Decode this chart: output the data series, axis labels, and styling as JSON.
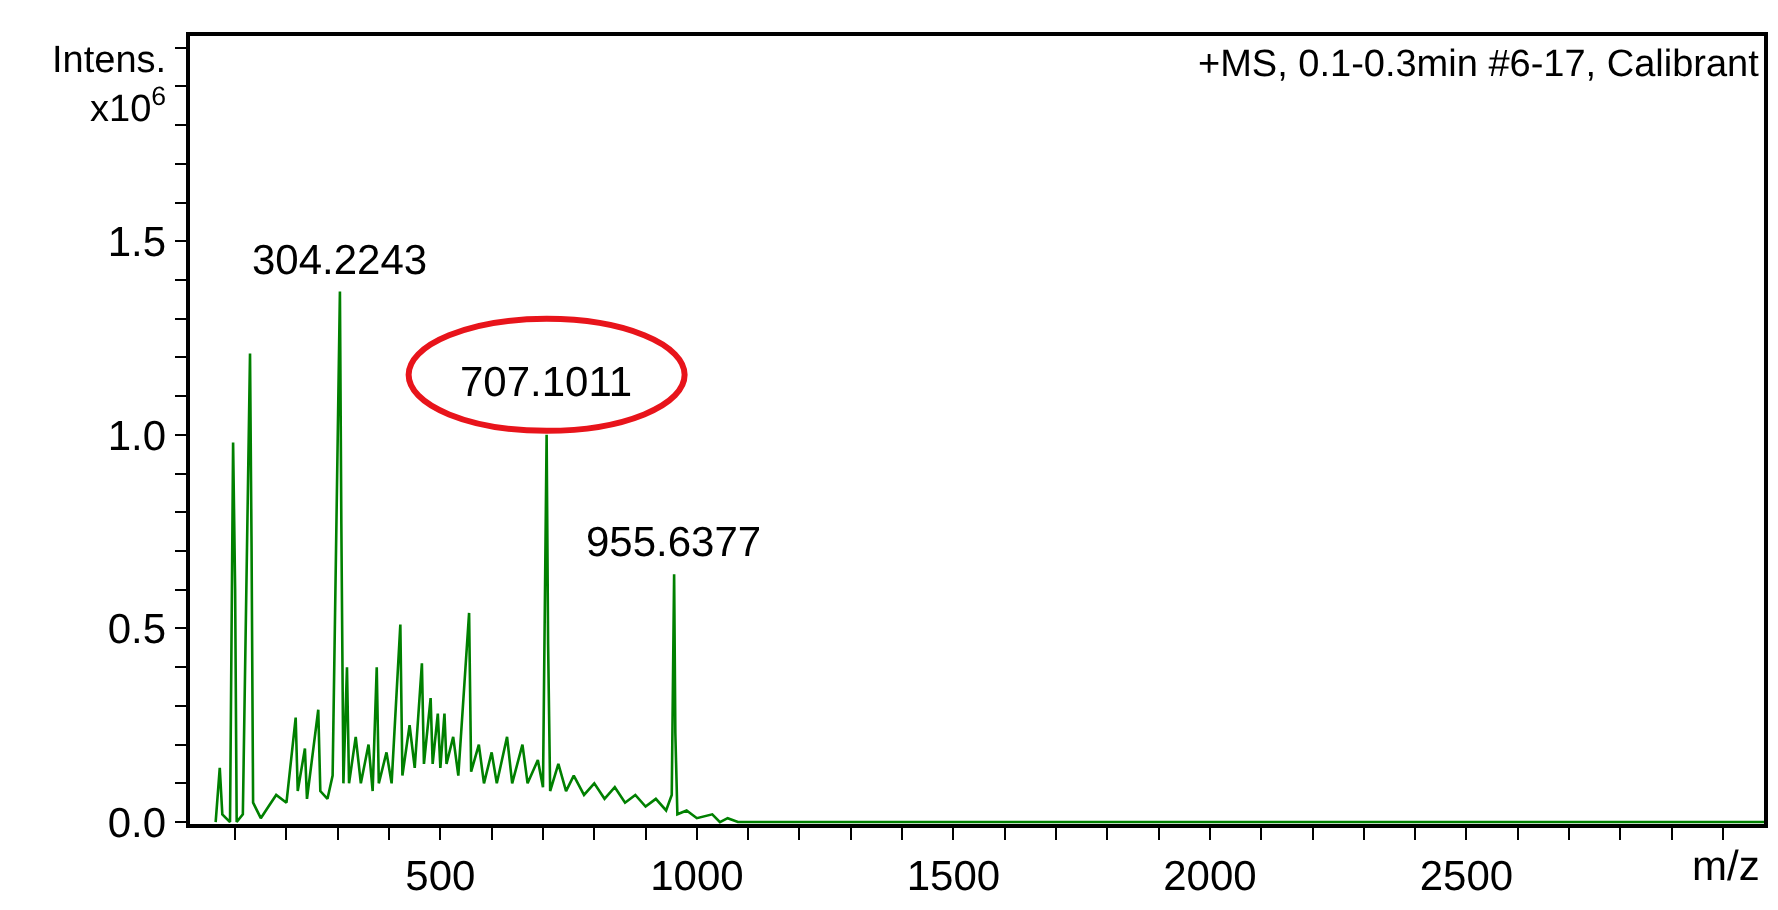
{
  "chart_data": {
    "type": "line",
    "title": "+MS, 0.1-0.3min #6-17, Calibrant",
    "xlabel": "m/z",
    "ylabel": "Intens. x10$^{6}$",
    "x": [
      62,
      70,
      75,
      90,
      96,
      100,
      103,
      115,
      129,
      132,
      135,
      150,
      165,
      180,
      200,
      218,
      222,
      236,
      240,
      262,
      266,
      280,
      290,
      304.2243,
      307,
      311,
      318,
      322,
      335,
      345,
      360,
      368,
      376,
      380,
      395,
      405,
      422,
      426,
      440,
      450,
      464,
      468,
      481,
      485,
      495,
      500,
      508,
      512,
      525,
      535,
      556,
      560,
      575,
      585,
      600,
      610,
      630,
      640,
      660,
      670,
      690,
      700,
      707.1011,
      710,
      714,
      730,
      745,
      760,
      780,
      800,
      820,
      840,
      860,
      880,
      900,
      920,
      940,
      951,
      955.6377,
      958,
      962,
      980,
      1000,
      1030,
      1045,
      1060,
      1080,
      3080
    ],
    "series": [
      {
        "color": "#008000",
        "values": [
          0,
          0.14,
          0.02,
          0,
          0.98,
          0.6,
          0,
          0.02,
          1.21,
          0.71,
          0.05,
          0.01,
          0.04,
          0.07,
          0.05,
          0.27,
          0.08,
          0.19,
          0.06,
          0.29,
          0.08,
          0.06,
          0.12,
          1.37,
          0.77,
          0.1,
          0.4,
          0.1,
          0.22,
          0.1,
          0.2,
          0.08,
          0.4,
          0.1,
          0.18,
          0.1,
          0.51,
          0.12,
          0.25,
          0.14,
          0.41,
          0.15,
          0.32,
          0.15,
          0.28,
          0.14,
          0.28,
          0.15,
          0.22,
          0.12,
          0.54,
          0.13,
          0.2,
          0.1,
          0.18,
          0.1,
          0.22,
          0.1,
          0.2,
          0.1,
          0.16,
          0.09,
          1.0,
          0.46,
          0.08,
          0.15,
          0.08,
          0.12,
          0.07,
          0.1,
          0.06,
          0.09,
          0.05,
          0.07,
          0.04,
          0.06,
          0.03,
          0.07,
          0.64,
          0.23,
          0.02,
          0.03,
          0.01,
          0.02,
          0,
          0.01,
          0,
          0
        ]
      }
    ],
    "annotations": [
      {
        "text": "304.2243",
        "x": 304.2243,
        "y": 1.37
      },
      {
        "text": "707.1011",
        "x": 707.1011,
        "y": 1.0
      },
      {
        "text": "955.6377",
        "x": 955.6377,
        "y": 0.64
      }
    ],
    "xlim": [
      12,
      3080
    ],
    "xticks": [
      {
        "value": 100,
        "label": null
      },
      {
        "value": 200,
        "label": null
      },
      {
        "value": 300,
        "label": null
      },
      {
        "value": 400,
        "label": null
      },
      500,
      {
        "value": 600,
        "label": null
      },
      {
        "value": 700,
        "label": null
      },
      {
        "value": 800,
        "label": null
      },
      {
        "value": 900,
        "label": null
      },
      1000,
      {
        "value": 1100,
        "label": null
      },
      {
        "value": 1200,
        "label": null
      },
      {
        "value": 1300,
        "label": null
      },
      {
        "value": 1400,
        "label": null
      },
      1500,
      {
        "value": 1600,
        "label": null
      },
      {
        "value": 1700,
        "label": null
      },
      {
        "value": 1800,
        "label": null
      },
      {
        "value": 1900,
        "label": null
      },
      2000,
      {
        "value": 2100,
        "label": null
      },
      {
        "value": 2200,
        "label": null
      },
      {
        "value": 2300,
        "label": null
      },
      {
        "value": 2400,
        "label": null
      },
      2500,
      {
        "value": 2600,
        "label": null
      },
      {
        "value": 2700,
        "label": null
      },
      {
        "value": 2800,
        "label": null
      },
      {
        "value": 2900,
        "label": null
      },
      {
        "value": 3000,
        "label": null
      }
    ],
    "ylim": [
      -0.005,
      2.03
    ],
    "yticks": [
      {
        "value": 0,
        "label": "0.0"
      },
      {
        "value": 0.1,
        "label": null
      },
      {
        "value": 0.2,
        "label": null
      },
      {
        "value": 0.3,
        "label": null
      },
      {
        "value": 0.4,
        "label": null
      },
      {
        "value": 0.5,
        "label": "0.5"
      },
      {
        "value": 0.6,
        "label": null
      },
      {
        "value": 0.7,
        "label": null
      },
      {
        "value": 0.8,
        "label": null
      },
      {
        "value": 0.9,
        "label": null
      },
      {
        "value": 1.0,
        "label": "1.0"
      },
      {
        "value": 1.1,
        "label": null
      },
      {
        "value": 1.2,
        "label": null
      },
      {
        "value": 1.3,
        "label": null
      },
      {
        "value": 1.4,
        "label": null
      },
      {
        "value": 1.5,
        "label": "1.5"
      },
      {
        "value": 1.6,
        "label": null
      },
      {
        "value": 1.7,
        "label": null
      },
      {
        "value": 1.8,
        "label": null
      },
      {
        "value": 1.9,
        "label": null
      },
      {
        "value": 2.0,
        "label": null
      }
    ],
    "marker": "none",
    "line_style": "solid"
  }
}
